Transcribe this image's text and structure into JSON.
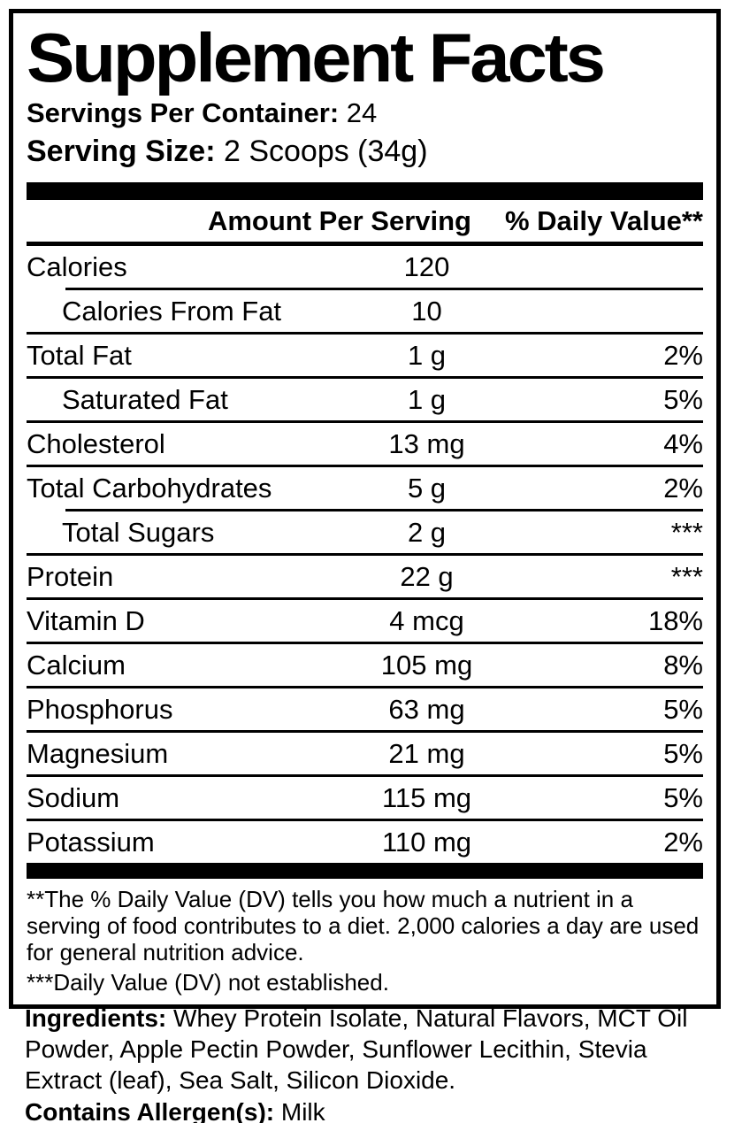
{
  "title": "Supplement Facts",
  "servings_per_container": {
    "label": "Servings Per Container:",
    "value": " 24"
  },
  "serving_size": {
    "label": "Serving Size:",
    "value": " 2 Scoops (34g)"
  },
  "table": {
    "header_amount": "Amount Per Serving",
    "header_dv": "% Daily Value**",
    "rows": [
      {
        "name": "Calories",
        "amount": "120",
        "dv": "",
        "indent": false,
        "divider_below": "indent"
      },
      {
        "name": "Calories From Fat",
        "amount": "10",
        "dv": "",
        "indent": true,
        "divider_below": "full"
      },
      {
        "name": "Total Fat",
        "amount": "1 g",
        "dv": "2%",
        "indent": false,
        "divider_below": "full"
      },
      {
        "name": "Saturated Fat",
        "amount": "1 g",
        "dv": "5%",
        "indent": true,
        "divider_below": "full"
      },
      {
        "name": "Cholesterol",
        "amount": "13 mg",
        "dv": "4%",
        "indent": false,
        "divider_below": "full"
      },
      {
        "name": "Total Carbohydrates",
        "amount": "5 g",
        "dv": "2%",
        "indent": false,
        "divider_below": "indent"
      },
      {
        "name": "Total Sugars",
        "amount": "2 g",
        "dv": "***",
        "indent": true,
        "divider_below": "full"
      },
      {
        "name": "Protein",
        "amount": "22 g",
        "dv": "***",
        "indent": false,
        "divider_below": "full"
      },
      {
        "name": "Vitamin D",
        "amount": "4 mcg",
        "dv": "18%",
        "indent": false,
        "divider_below": "full"
      },
      {
        "name": "Calcium",
        "amount": "105 mg",
        "dv": "8%",
        "indent": false,
        "divider_below": "full"
      },
      {
        "name": "Phosphorus",
        "amount": "63 mg",
        "dv": "5%",
        "indent": false,
        "divider_below": "full"
      },
      {
        "name": "Magnesium",
        "amount": "21 mg",
        "dv": "5%",
        "indent": false,
        "divider_below": "full"
      },
      {
        "name": "Sodium",
        "amount": "115 mg",
        "dv": "5%",
        "indent": false,
        "divider_below": "full"
      },
      {
        "name": "Potassium",
        "amount": "110 mg",
        "dv": "2%",
        "indent": false,
        "divider_below": "none"
      }
    ]
  },
  "footnotes": [
    "**The % Daily Value (DV) tells you how much a nutrient in a serving of food contributes to a diet. 2,000 calories a day are used for general nutrition advice.",
    "***Daily Value (DV) not established."
  ],
  "ingredients": {
    "label": "Ingredients:",
    "text": " Whey Protein Isolate, Natural Flavors, MCT Oil Powder, Apple Pectin Powder, Sunflower Lecithin, Stevia Extract (leaf), Sea Salt, Silicon Dioxide."
  },
  "allergens": {
    "label": "Contains Allergen(s):",
    "value": " Milk"
  },
  "colors": {
    "text": "#000000",
    "background": "#ffffff",
    "rule": "#000000"
  }
}
